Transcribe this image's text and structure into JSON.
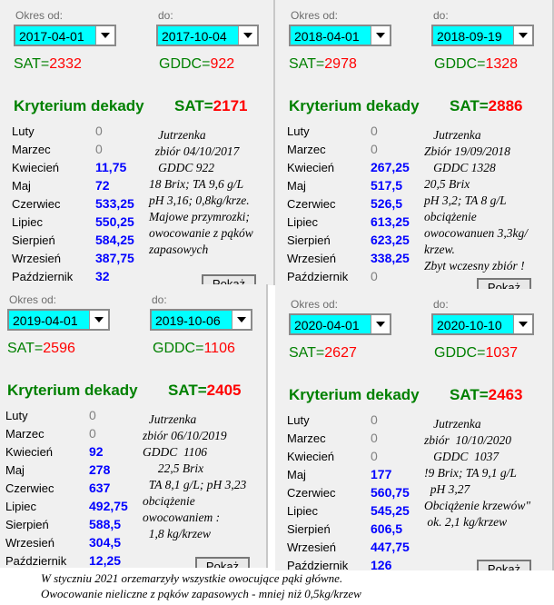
{
  "labels": {
    "from": "Okres od:",
    "to": "do:",
    "sat": "SAT=",
    "gddc": "GDDC=",
    "kryterium": "Kryterium  dekady",
    "ksat": "SAT=",
    "button": "Pokaż"
  },
  "months": [
    "Luty",
    "Marzec",
    "Kwiecień",
    "Maj",
    "Czerwiec",
    "Lipiec",
    "Sierpień",
    "Wrzesień",
    "Październik"
  ],
  "panels": [
    {
      "from": "2017-04-01",
      "to": "2017-10-04",
      "sat": "2332",
      "gddc": "922",
      "ksat": "2171",
      "values": [
        "0",
        "0",
        "11,75",
        "72",
        "533,25",
        "550,25",
        "584,25",
        "387,75",
        "32"
      ],
      "note": "   Jutrzenka\n  zbiór 04/10/2017\n   GDDC 922\n18 Brix; TA 9,6 g/L\npH 3,16; 0,8kg/krze.\nMajowe przymrozki;\nowocowanie z pąków\nzapasowych"
    },
    {
      "from": "2018-04-01",
      "to": "2018-09-19",
      "sat": "2978",
      "gddc": "1328",
      "ksat": "2886",
      "values": [
        "0",
        "0",
        "267,25",
        "517,5",
        "526,5",
        "613,25",
        "623,25",
        "338,25",
        "0"
      ],
      "note": "   Jutrzenka\nZbiór 19/09/2018\n   GDDC 1328\n20,5 Brix\npH 3,2; TA 8 g/L\nobciążenie\nowocowanuen 3,3kg/\nkrzew.\nZbyt wczesny zbiór !"
    },
    {
      "from": "2019-04-01",
      "to": "2019-10-06",
      "sat": "2596",
      "gddc": "1106",
      "ksat": "2405",
      "values": [
        "0",
        "0",
        "92",
        "278",
        "637",
        "492,75",
        "588,5",
        "304,5",
        "12,25"
      ],
      "note": "  Jutrzenka\nzbiór 06/10/2019\nGDDC  1106\n     22,5 Brix\n  TA 8,1 g/L; pH 3,23\nobciążenie\nowocowaniem :\n  1,8 kg/krzew"
    },
    {
      "from": "2020-04-01",
      "to": "2020-10-10",
      "sat": "2627",
      "gddc": "1037",
      "ksat": "2463",
      "values": [
        "0",
        "0",
        "0",
        "177",
        "560,75",
        "545,25",
        "606,5",
        "447,75",
        "126"
      ],
      "note": "   Jutrzenka\nzbiór  10/10/2020\n   GDDC  1037\n!9 Brix; TA 9,1 g/L\n  pH 3,27\nObciążenie krzewów\"\n ok. 2,1 kg/krzew"
    }
  ],
  "footer": "W styczniu 2021 orzemarzyły wszystkie owocujące pąki główne.\nOwocowanie nieliczne z pąków zapasowych - mniej niż 0,5kg/krzew",
  "colors": {
    "background": "#f0f0f0",
    "combo": "#00ffff",
    "label": "#008000",
    "number": "#ff0000",
    "value": "#0000ff"
  }
}
